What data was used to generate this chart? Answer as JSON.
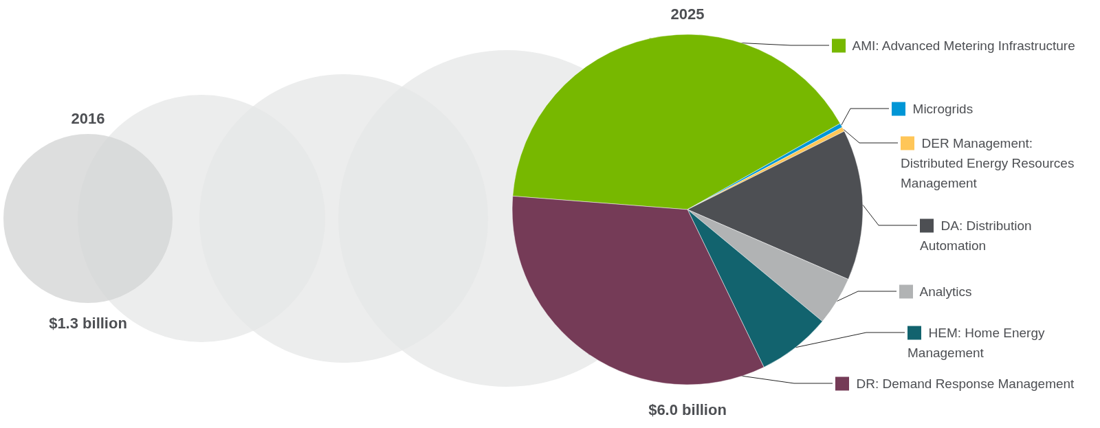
{
  "chart_data": {
    "type": "pie",
    "categories": [
      "AMI: Advanced Metering Infrastructure",
      "Microgrids",
      "DER Management: Distributed Energy Resources Management",
      "DA: Distribution Automation",
      "Analytics",
      "HEM: Home Energy Management",
      "DR: Demand Response Management"
    ],
    "values": [
      40.6,
      0.4,
      0.4,
      13.9,
      4.5,
      6.8,
      33.4
    ],
    "colors": [
      "#77b800",
      "#0096d6",
      "#ffc658",
      "#4d4f53",
      "#b1b3b4",
      "#12636e",
      "#753b57"
    ],
    "legend": "right",
    "annotations": [
      "2016",
      "$1.3 billion",
      "2025",
      "$6.0 billion"
    ]
  }
}
